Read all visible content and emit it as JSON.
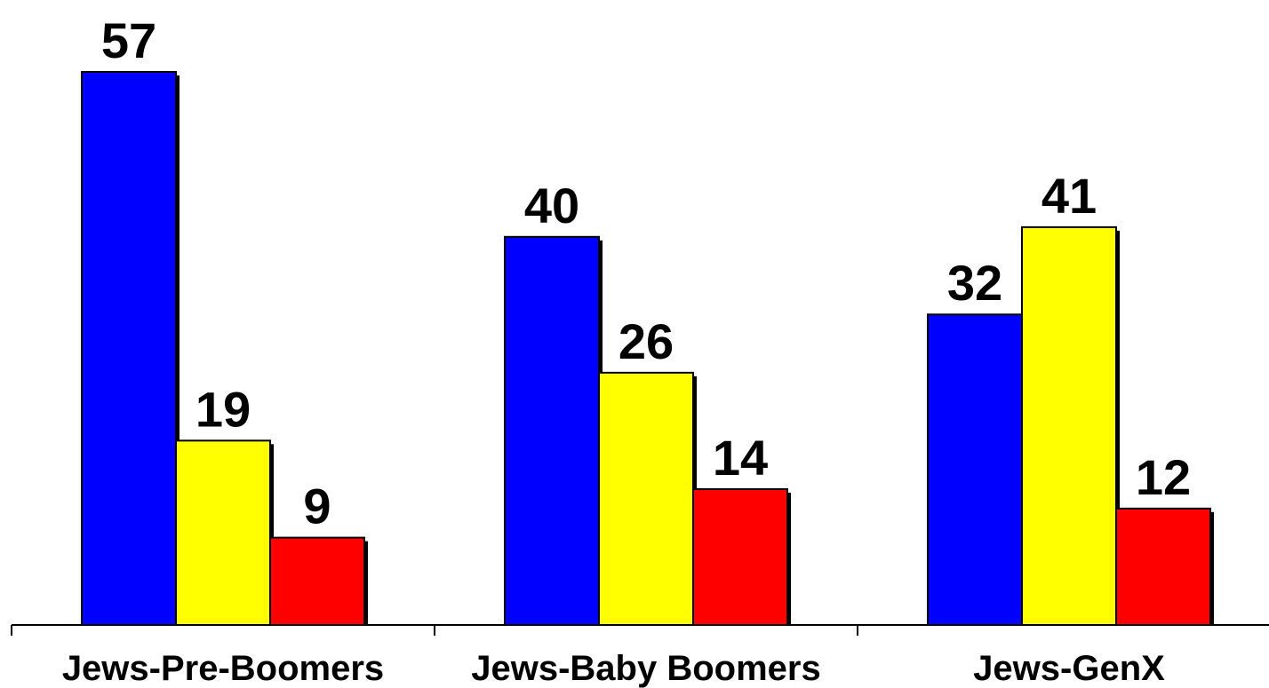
{
  "chart_data": {
    "type": "bar",
    "title": "",
    "xlabel": "",
    "ylabel": "",
    "categories": [
      "Jews-Pre-Boomers",
      "Jews-Baby Boomers",
      "Jews-GenX"
    ],
    "series": [
      {
        "color": "#0000ff",
        "values": [
          57,
          40,
          32
        ]
      },
      {
        "color": "#ffff00",
        "values": [
          19,
          26,
          41
        ]
      },
      {
        "color": "#ff0000",
        "values": [
          9,
          14,
          12
        ]
      }
    ],
    "ylim": [
      0,
      57
    ],
    "grid": false,
    "legend": "none",
    "data_labels": true
  }
}
